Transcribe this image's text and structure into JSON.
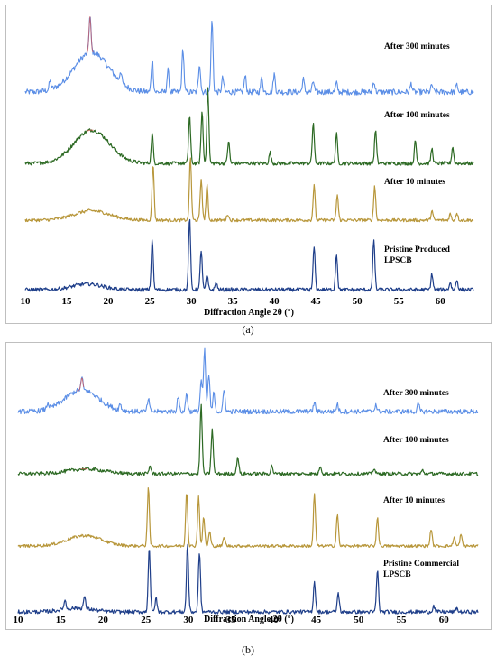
{
  "colors": {
    "after_300_minutes": "#5b8ee6",
    "after_100_minutes": "#2d6a24",
    "after_10_minutes": "#b8973b",
    "pristine": "#1f3f8a",
    "highlight": "#d9534f"
  },
  "captions": {
    "a": "(a)",
    "b": "(b)"
  },
  "chart_data": [
    {
      "type": "line",
      "panel": "a",
      "xlabel": "Diffraction Angle 2θ (°)",
      "xlim": [
        10,
        64
      ],
      "xticks": [
        10,
        15,
        20,
        25,
        30,
        35,
        40,
        45,
        50,
        55,
        60
      ],
      "ylabel": "",
      "grid": false,
      "series": [
        {
          "name": "After 300 minutes",
          "color": "#5b8ee6",
          "amorphous_hump": {
            "center": 18,
            "width": 3.0,
            "height": 0.55
          },
          "peaks": [
            [
              13,
              0.12
            ],
            [
              17.8,
              0.5
            ],
            [
              21.5,
              0.15
            ],
            [
              25.3,
              0.45
            ],
            [
              27.2,
              0.3
            ],
            [
              29.0,
              0.6
            ],
            [
              31.0,
              0.4
            ],
            [
              32.5,
              1.0
            ],
            [
              33.8,
              0.2
            ],
            [
              36.5,
              0.22
            ],
            [
              38.5,
              0.2
            ],
            [
              40.0,
              0.25
            ],
            [
              43.5,
              0.18
            ],
            [
              44.7,
              0.15
            ],
            [
              47.5,
              0.12
            ],
            [
              52.0,
              0.15
            ],
            [
              56.5,
              0.12
            ],
            [
              59.0,
              0.1
            ],
            [
              62.0,
              0.1
            ]
          ]
        },
        {
          "name": "After 100 minutes",
          "color": "#2d6a24",
          "amorphous_hump": {
            "center": 18,
            "width": 3.0,
            "height": 0.45
          },
          "peaks": [
            [
              25.3,
              0.4
            ],
            [
              29.8,
              0.65
            ],
            [
              31.3,
              0.7
            ],
            [
              32.0,
              1.0
            ],
            [
              34.5,
              0.3
            ],
            [
              39.5,
              0.15
            ],
            [
              44.7,
              0.55
            ],
            [
              47.5,
              0.4
            ],
            [
              52.2,
              0.45
            ],
            [
              57.0,
              0.3
            ],
            [
              59.0,
              0.2
            ],
            [
              61.5,
              0.22
            ]
          ]
        },
        {
          "name": "After 10 minutes",
          "color": "#b8973b",
          "amorphous_hump": {
            "center": 18,
            "width": 3.0,
            "height": 0.15
          },
          "peaks": [
            [
              25.4,
              0.9
            ],
            [
              29.9,
              1.0
            ],
            [
              31.2,
              0.65
            ],
            [
              31.9,
              0.55
            ],
            [
              34.4,
              0.1
            ],
            [
              44.8,
              0.55
            ],
            [
              47.6,
              0.4
            ],
            [
              52.1,
              0.55
            ],
            [
              59.0,
              0.15
            ],
            [
              61.2,
              0.1
            ],
            [
              62.0,
              0.12
            ]
          ]
        },
        {
          "name": "Pristine Produced LPSCB",
          "color": "#1f3f8a",
          "amorphous_hump": {
            "center": 17.5,
            "width": 2.5,
            "height": 0.08
          },
          "peaks": [
            [
              25.3,
              0.7
            ],
            [
              29.8,
              1.0
            ],
            [
              31.2,
              0.55
            ],
            [
              31.9,
              0.2
            ],
            [
              33.0,
              0.1
            ],
            [
              44.8,
              0.6
            ],
            [
              47.5,
              0.5
            ],
            [
              52.0,
              0.7
            ],
            [
              59.0,
              0.22
            ],
            [
              61.2,
              0.1
            ],
            [
              62.0,
              0.14
            ]
          ]
        }
      ]
    },
    {
      "type": "line",
      "panel": "b",
      "xlabel": "Diffraction Angle 2θ (°)",
      "xlim": [
        10,
        64
      ],
      "xticks": [
        10,
        15,
        20,
        25,
        30,
        35,
        40,
        45,
        50,
        55,
        60
      ],
      "ylabel": "",
      "grid": false,
      "series": [
        {
          "name": "After 300 minutes",
          "color": "#5b8ee6",
          "amorphous_hump": {
            "center": 17.5,
            "width": 2.8,
            "height": 0.35
          },
          "peaks": [
            [
              13.5,
              0.1
            ],
            [
              17.5,
              0.2
            ],
            [
              22.0,
              0.1
            ],
            [
              25.3,
              0.2
            ],
            [
              28.8,
              0.25
            ],
            [
              29.8,
              0.3
            ],
            [
              31.5,
              0.5
            ],
            [
              31.9,
              1.0
            ],
            [
              32.4,
              0.6
            ],
            [
              33.0,
              0.3
            ],
            [
              34.2,
              0.35
            ],
            [
              44.8,
              0.15
            ],
            [
              47.5,
              0.12
            ],
            [
              52.0,
              0.12
            ],
            [
              57.0,
              0.12
            ]
          ]
        },
        {
          "name": "After 100 minutes",
          "color": "#2d6a24",
          "amorphous_hump": {
            "center": 18,
            "width": 3.0,
            "height": 0.07
          },
          "peaks": [
            [
              25.5,
              0.12
            ],
            [
              31.5,
              1.0
            ],
            [
              32.8,
              0.65
            ],
            [
              35.8,
              0.25
            ],
            [
              39.8,
              0.12
            ],
            [
              45.5,
              0.12
            ],
            [
              51.8,
              0.08
            ],
            [
              57.5,
              0.05
            ]
          ]
        },
        {
          "name": "After 10 minutes",
          "color": "#b8973b",
          "amorphous_hump": {
            "center": 17.8,
            "width": 2.8,
            "height": 0.18
          },
          "peaks": [
            [
              25.3,
              1.0
            ],
            [
              29.8,
              0.95
            ],
            [
              31.2,
              0.85
            ],
            [
              31.8,
              0.5
            ],
            [
              32.5,
              0.25
            ],
            [
              34.2,
              0.15
            ],
            [
              44.8,
              0.9
            ],
            [
              47.5,
              0.55
            ],
            [
              52.2,
              0.5
            ],
            [
              58.5,
              0.3
            ],
            [
              61.2,
              0.15
            ],
            [
              62.0,
              0.2
            ]
          ]
        },
        {
          "name": "Pristine Commercial LPSCB",
          "color": "#1f3f8a",
          "amorphous_hump": {
            "center": 17,
            "width": 2.5,
            "height": 0.05
          },
          "peaks": [
            [
              15.5,
              0.12
            ],
            [
              17.8,
              0.15
            ],
            [
              25.4,
              0.85
            ],
            [
              26.2,
              0.18
            ],
            [
              29.9,
              0.9
            ],
            [
              31.3,
              0.8
            ],
            [
              44.8,
              0.4
            ],
            [
              47.6,
              0.25
            ],
            [
              52.2,
              0.55
            ],
            [
              58.8,
              0.08
            ],
            [
              61.5,
              0.05
            ]
          ]
        }
      ]
    }
  ],
  "labels": {
    "a": {
      "s300": "After 300 minutes",
      "s100": "After 100 minutes",
      "s10": "After 10 minutes",
      "pristine_line1": "Pristine Produced",
      "pristine_line2": "LPSCB",
      "xlabel": "Diffraction Angle 2θ (°)"
    },
    "b": {
      "s300": "After 300 minutes",
      "s100": "After 100 minutes",
      "s10": "After 10 minutes",
      "pristine_line1": "Pristine Commercial",
      "pristine_line2": "LPSCB",
      "xlabel": "Diffraction Angle 2θ (°)"
    }
  },
  "tick_labels": [
    "10",
    "15",
    "20",
    "25",
    "30",
    "35",
    "40",
    "45",
    "50",
    "55",
    "60"
  ]
}
